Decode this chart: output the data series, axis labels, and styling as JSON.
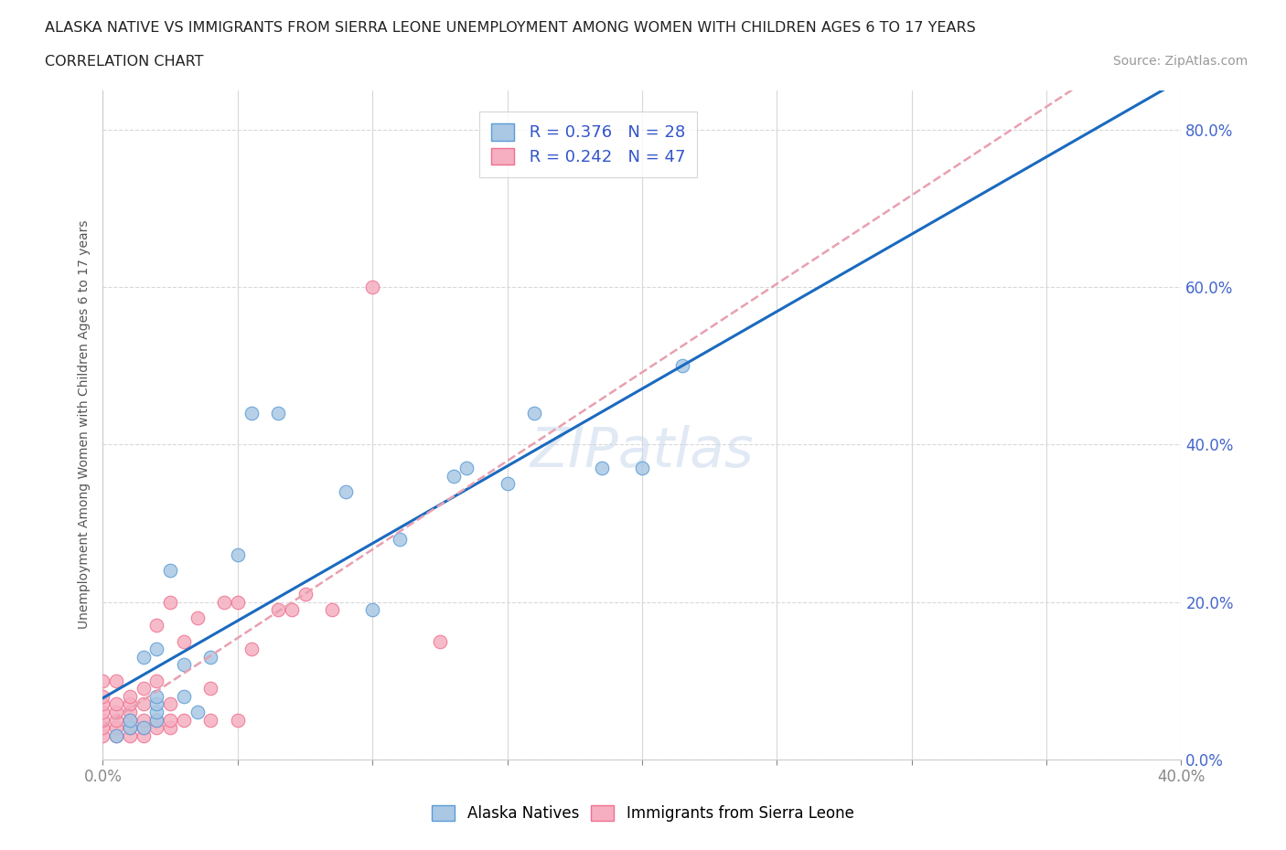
{
  "title_line1": "ALASKA NATIVE VS IMMIGRANTS FROM SIERRA LEONE UNEMPLOYMENT AMONG WOMEN WITH CHILDREN AGES 6 TO 17 YEARS",
  "title_line2": "CORRELATION CHART",
  "source": "Source: ZipAtlas.com",
  "ylabel": "Unemployment Among Women with Children Ages 6 to 17 years",
  "xlim": [
    0.0,
    0.4
  ],
  "ylim": [
    0.0,
    0.85
  ],
  "watermark": "ZIPatlas",
  "legend_r1": "R = 0.376",
  "legend_n1": "N = 28",
  "legend_r2": "R = 0.242",
  "legend_n2": "N = 47",
  "alaska_color": "#aac8e4",
  "sierra_color": "#f5afc0",
  "alaska_edge": "#5b9bd5",
  "sierra_edge": "#f07090",
  "trendline_alaska_color": "#1a6abf",
  "trendline_sierra_color": "#e8a0b0",
  "legend_text_color": "#3355cc",
  "right_axis_color": "#4466cc",
  "tick_label_color": "#888888",
  "x_tick_vals": [
    0.0,
    0.05,
    0.1,
    0.15,
    0.2,
    0.25,
    0.3,
    0.35,
    0.4
  ],
  "y_tick_vals": [
    0.0,
    0.2,
    0.4,
    0.6,
    0.8
  ],
  "alaska_x": [
    0.005,
    0.01,
    0.01,
    0.015,
    0.015,
    0.02,
    0.02,
    0.02,
    0.02,
    0.02,
    0.025,
    0.03,
    0.03,
    0.035,
    0.04,
    0.05,
    0.055,
    0.065,
    0.09,
    0.1,
    0.11,
    0.13,
    0.135,
    0.15,
    0.16,
    0.185,
    0.2,
    0.215
  ],
  "alaska_y": [
    0.03,
    0.04,
    0.05,
    0.04,
    0.13,
    0.14,
    0.05,
    0.06,
    0.07,
    0.08,
    0.24,
    0.08,
    0.12,
    0.06,
    0.13,
    0.26,
    0.44,
    0.44,
    0.34,
    0.19,
    0.28,
    0.36,
    0.37,
    0.35,
    0.44,
    0.37,
    0.37,
    0.5
  ],
  "sierra_x": [
    0.0,
    0.0,
    0.0,
    0.0,
    0.0,
    0.0,
    0.0,
    0.005,
    0.005,
    0.005,
    0.005,
    0.005,
    0.005,
    0.01,
    0.01,
    0.01,
    0.01,
    0.01,
    0.01,
    0.015,
    0.015,
    0.015,
    0.015,
    0.015,
    0.02,
    0.02,
    0.02,
    0.02,
    0.025,
    0.025,
    0.025,
    0.025,
    0.03,
    0.03,
    0.035,
    0.04,
    0.04,
    0.045,
    0.05,
    0.05,
    0.055,
    0.065,
    0.07,
    0.075,
    0.085,
    0.1,
    0.125
  ],
  "sierra_y": [
    0.03,
    0.04,
    0.05,
    0.06,
    0.07,
    0.08,
    0.1,
    0.03,
    0.04,
    0.05,
    0.06,
    0.07,
    0.1,
    0.03,
    0.04,
    0.05,
    0.06,
    0.07,
    0.08,
    0.03,
    0.04,
    0.05,
    0.07,
    0.09,
    0.04,
    0.05,
    0.1,
    0.17,
    0.04,
    0.05,
    0.07,
    0.2,
    0.05,
    0.15,
    0.18,
    0.05,
    0.09,
    0.2,
    0.05,
    0.2,
    0.14,
    0.19,
    0.19,
    0.21,
    0.19,
    0.6,
    0.15
  ]
}
